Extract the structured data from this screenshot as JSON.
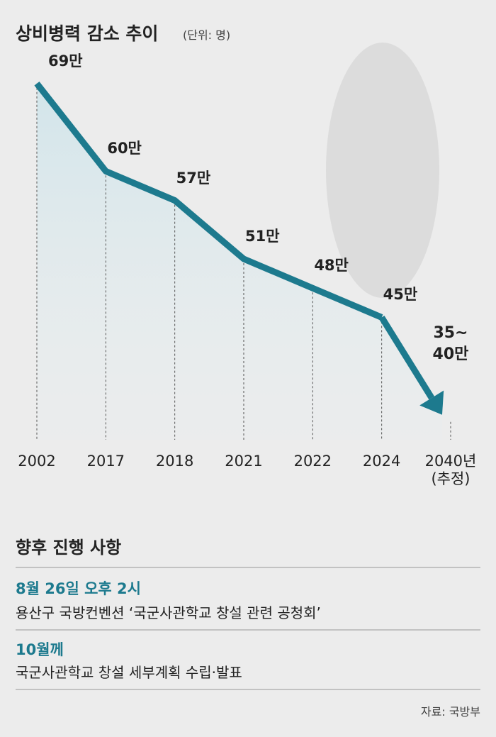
{
  "chart_data": {
    "type": "line",
    "title": "상비병력 감소 추이",
    "subtitle": "(단위: 명)",
    "categories": [
      "2002",
      "2017",
      "2018",
      "2021",
      "2022",
      "2024",
      "2040년\n(추정)"
    ],
    "values": [
      69,
      60,
      57,
      51,
      48,
      45,
      null
    ],
    "value_labels": [
      "69만",
      "60만",
      "57만",
      "51만",
      "48만",
      "45만",
      null
    ],
    "estimate": {
      "low": 35,
      "high": 40,
      "label": "35~\n40만"
    },
    "color": "#1d7a8e",
    "ylim": [
      32,
      70
    ]
  },
  "schedule": {
    "title": "향후 진행 사항",
    "items": [
      {
        "date": "8월 26일 오후 2시",
        "desc": "용산구 국방컨벤션 ‘국군사관학교 창설 관련 공청회’"
      },
      {
        "date": "10월께",
        "desc": "국군사관학교 창설 세부계획 수립·발표"
      }
    ]
  },
  "source": "자료: 국방부"
}
